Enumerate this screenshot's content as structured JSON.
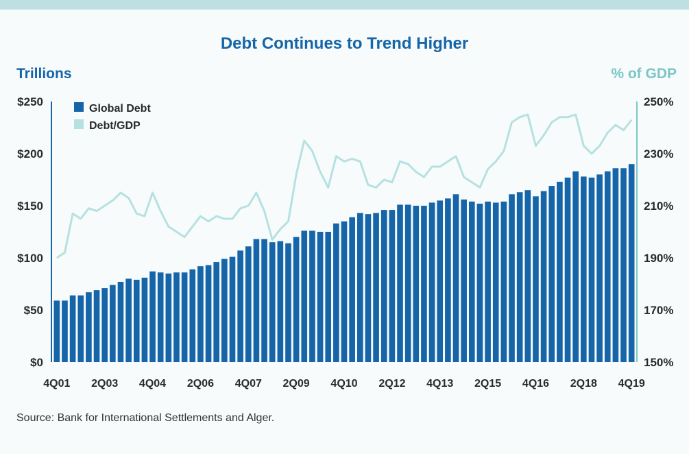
{
  "title": "Debt Continues to Trend Higher",
  "source": "Source: Bank for International Settlements and Alger.",
  "colors": {
    "bars": "#1565a8",
    "line": "#b6e1e1",
    "left_axis": "#1565a8",
    "right_axis": "#7cc6c5"
  },
  "chart_data": {
    "type": "bar",
    "title": "Debt Continues to Trend Higher",
    "y_left_label": "Trillions",
    "y_right_label": "% of GDP",
    "y_left_ticks": [
      "$0",
      "$50",
      "$100",
      "$150",
      "$200",
      "$250"
    ],
    "y_right_ticks": [
      "150%",
      "170%",
      "190%",
      "210%",
      "230%",
      "250%"
    ],
    "ylim_left": [
      0,
      250
    ],
    "ylim_right": [
      150,
      250
    ],
    "x_tick_labels": [
      "4Q01",
      "2Q03",
      "4Q04",
      "2Q06",
      "4Q07",
      "2Q09",
      "4Q10",
      "2Q12",
      "4Q13",
      "2Q15",
      "4Q16",
      "2Q18",
      "4Q19"
    ],
    "legend_position": "top-left",
    "series": [
      {
        "name": "Global Debt",
        "type": "bar",
        "axis": "left",
        "values": [
          59,
          59,
          64,
          64,
          67,
          69,
          71,
          74,
          77,
          80,
          79,
          81,
          87,
          86,
          85,
          86,
          86,
          89,
          92,
          93,
          96,
          99,
          101,
          107,
          111,
          118,
          118,
          115,
          116,
          114,
          120,
          126,
          126,
          125,
          125,
          133,
          135,
          139,
          143,
          142,
          143,
          146,
          146,
          151,
          151,
          150,
          150,
          153,
          155,
          157,
          161,
          156,
          154,
          152,
          154,
          153,
          154,
          161,
          163,
          165,
          159,
          164,
          169,
          173,
          177,
          183,
          178,
          177,
          180,
          183,
          186,
          186,
          190
        ]
      },
      {
        "name": "Debt/GDP",
        "type": "line",
        "axis": "right",
        "values": [
          190,
          192,
          207,
          205,
          209,
          208,
          210,
          212,
          215,
          213,
          207,
          206,
          215,
          208,
          202,
          200,
          198,
          202,
          206,
          204,
          206,
          205,
          205,
          209,
          210,
          215,
          208,
          197,
          201,
          204,
          222,
          235,
          231,
          223,
          217,
          229,
          227,
          228,
          227,
          218,
          217,
          220,
          219,
          227,
          226,
          223,
          221,
          225,
          225,
          227,
          229,
          221,
          219,
          217,
          224,
          227,
          231,
          242,
          244,
          245,
          233,
          237,
          242,
          244,
          244,
          245,
          233,
          230,
          233,
          238,
          241,
          239,
          243
        ]
      }
    ]
  }
}
